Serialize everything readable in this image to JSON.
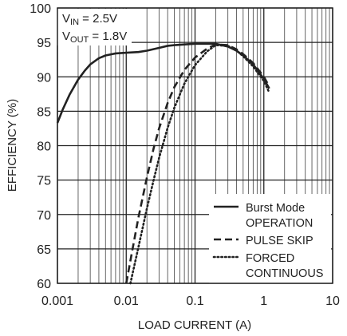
{
  "chart_data": {
    "type": "line",
    "xlabel": "LOAD CURRENT (A)",
    "ylabel": "EFFICIENCY (%)",
    "x_scale": "log",
    "xlim": [
      0.001,
      10
    ],
    "ylim": [
      60,
      100
    ],
    "grid": true,
    "x_tick_labels": [
      "0.001",
      "0.01",
      "0.1",
      "1",
      "10"
    ],
    "x_ticks": [
      0.001,
      0.01,
      0.1,
      1,
      10
    ],
    "y_ticks": [
      60,
      65,
      70,
      75,
      80,
      85,
      90,
      95,
      100
    ],
    "y_tick_labels": [
      "60",
      "65",
      "70",
      "75",
      "80",
      "85",
      "90",
      "95",
      "100"
    ],
    "annotation": {
      "vin_prefix": "V",
      "vin_sub": "IN",
      "vin_value": " = 2.5V",
      "vout_prefix": "V",
      "vout_sub": "OUT",
      "vout_value": " = 1.8V"
    },
    "legend_position": "bottom-right",
    "series": [
      {
        "name": "Burst Mode OPERATION",
        "legend_lines": [
          "Burst Mode",
          "OPERATION"
        ],
        "style": "solid",
        "x": [
          0.001,
          0.0012,
          0.0015,
          0.002,
          0.0025,
          0.003,
          0.004,
          0.005,
          0.007,
          0.01,
          0.015,
          0.02,
          0.03,
          0.04,
          0.05,
          0.07,
          0.1,
          0.15,
          0.2,
          0.3,
          0.4,
          0.5,
          0.7,
          1.0,
          1.2
        ],
        "y": [
          83.3,
          85.3,
          87.4,
          89.6,
          90.9,
          91.8,
          92.7,
          93.1,
          93.4,
          93.5,
          93.6,
          93.8,
          94.2,
          94.5,
          94.6,
          94.7,
          94.8,
          94.8,
          94.8,
          94.4,
          93.8,
          93.1,
          91.8,
          89.7,
          88.3
        ]
      },
      {
        "name": "PULSE SKIP",
        "legend_lines": [
          "PULSE SKIP"
        ],
        "style": "dashed",
        "x": [
          0.01,
          0.012,
          0.015,
          0.02,
          0.025,
          0.03,
          0.04,
          0.05,
          0.07,
          0.1,
          0.15,
          0.2,
          0.3,
          0.4,
          0.5,
          0.7,
          1.0,
          1.2
        ],
        "y": [
          60,
          64.3,
          69.5,
          75.4,
          79.6,
          82.5,
          86.2,
          88.5,
          91.0,
          92.8,
          94.1,
          94.7,
          94.6,
          94.0,
          93.3,
          92.0,
          90.0,
          88.6
        ]
      },
      {
        "name": "FORCED CONTINUOUS",
        "legend_lines": [
          "FORCED",
          "CONTINUOUS"
        ],
        "style": "dotted",
        "x": [
          0.0115,
          0.013,
          0.015,
          0.02,
          0.025,
          0.03,
          0.04,
          0.05,
          0.07,
          0.1,
          0.15,
          0.2,
          0.3,
          0.4,
          0.5,
          0.7,
          1.0,
          1.2
        ],
        "y": [
          60,
          62.4,
          65.2,
          70.9,
          75.0,
          78.2,
          82.6,
          85.5,
          89.0,
          91.7,
          93.7,
          94.6,
          94.5,
          93.8,
          93.0,
          91.5,
          89.4,
          87.7
        ]
      }
    ]
  }
}
